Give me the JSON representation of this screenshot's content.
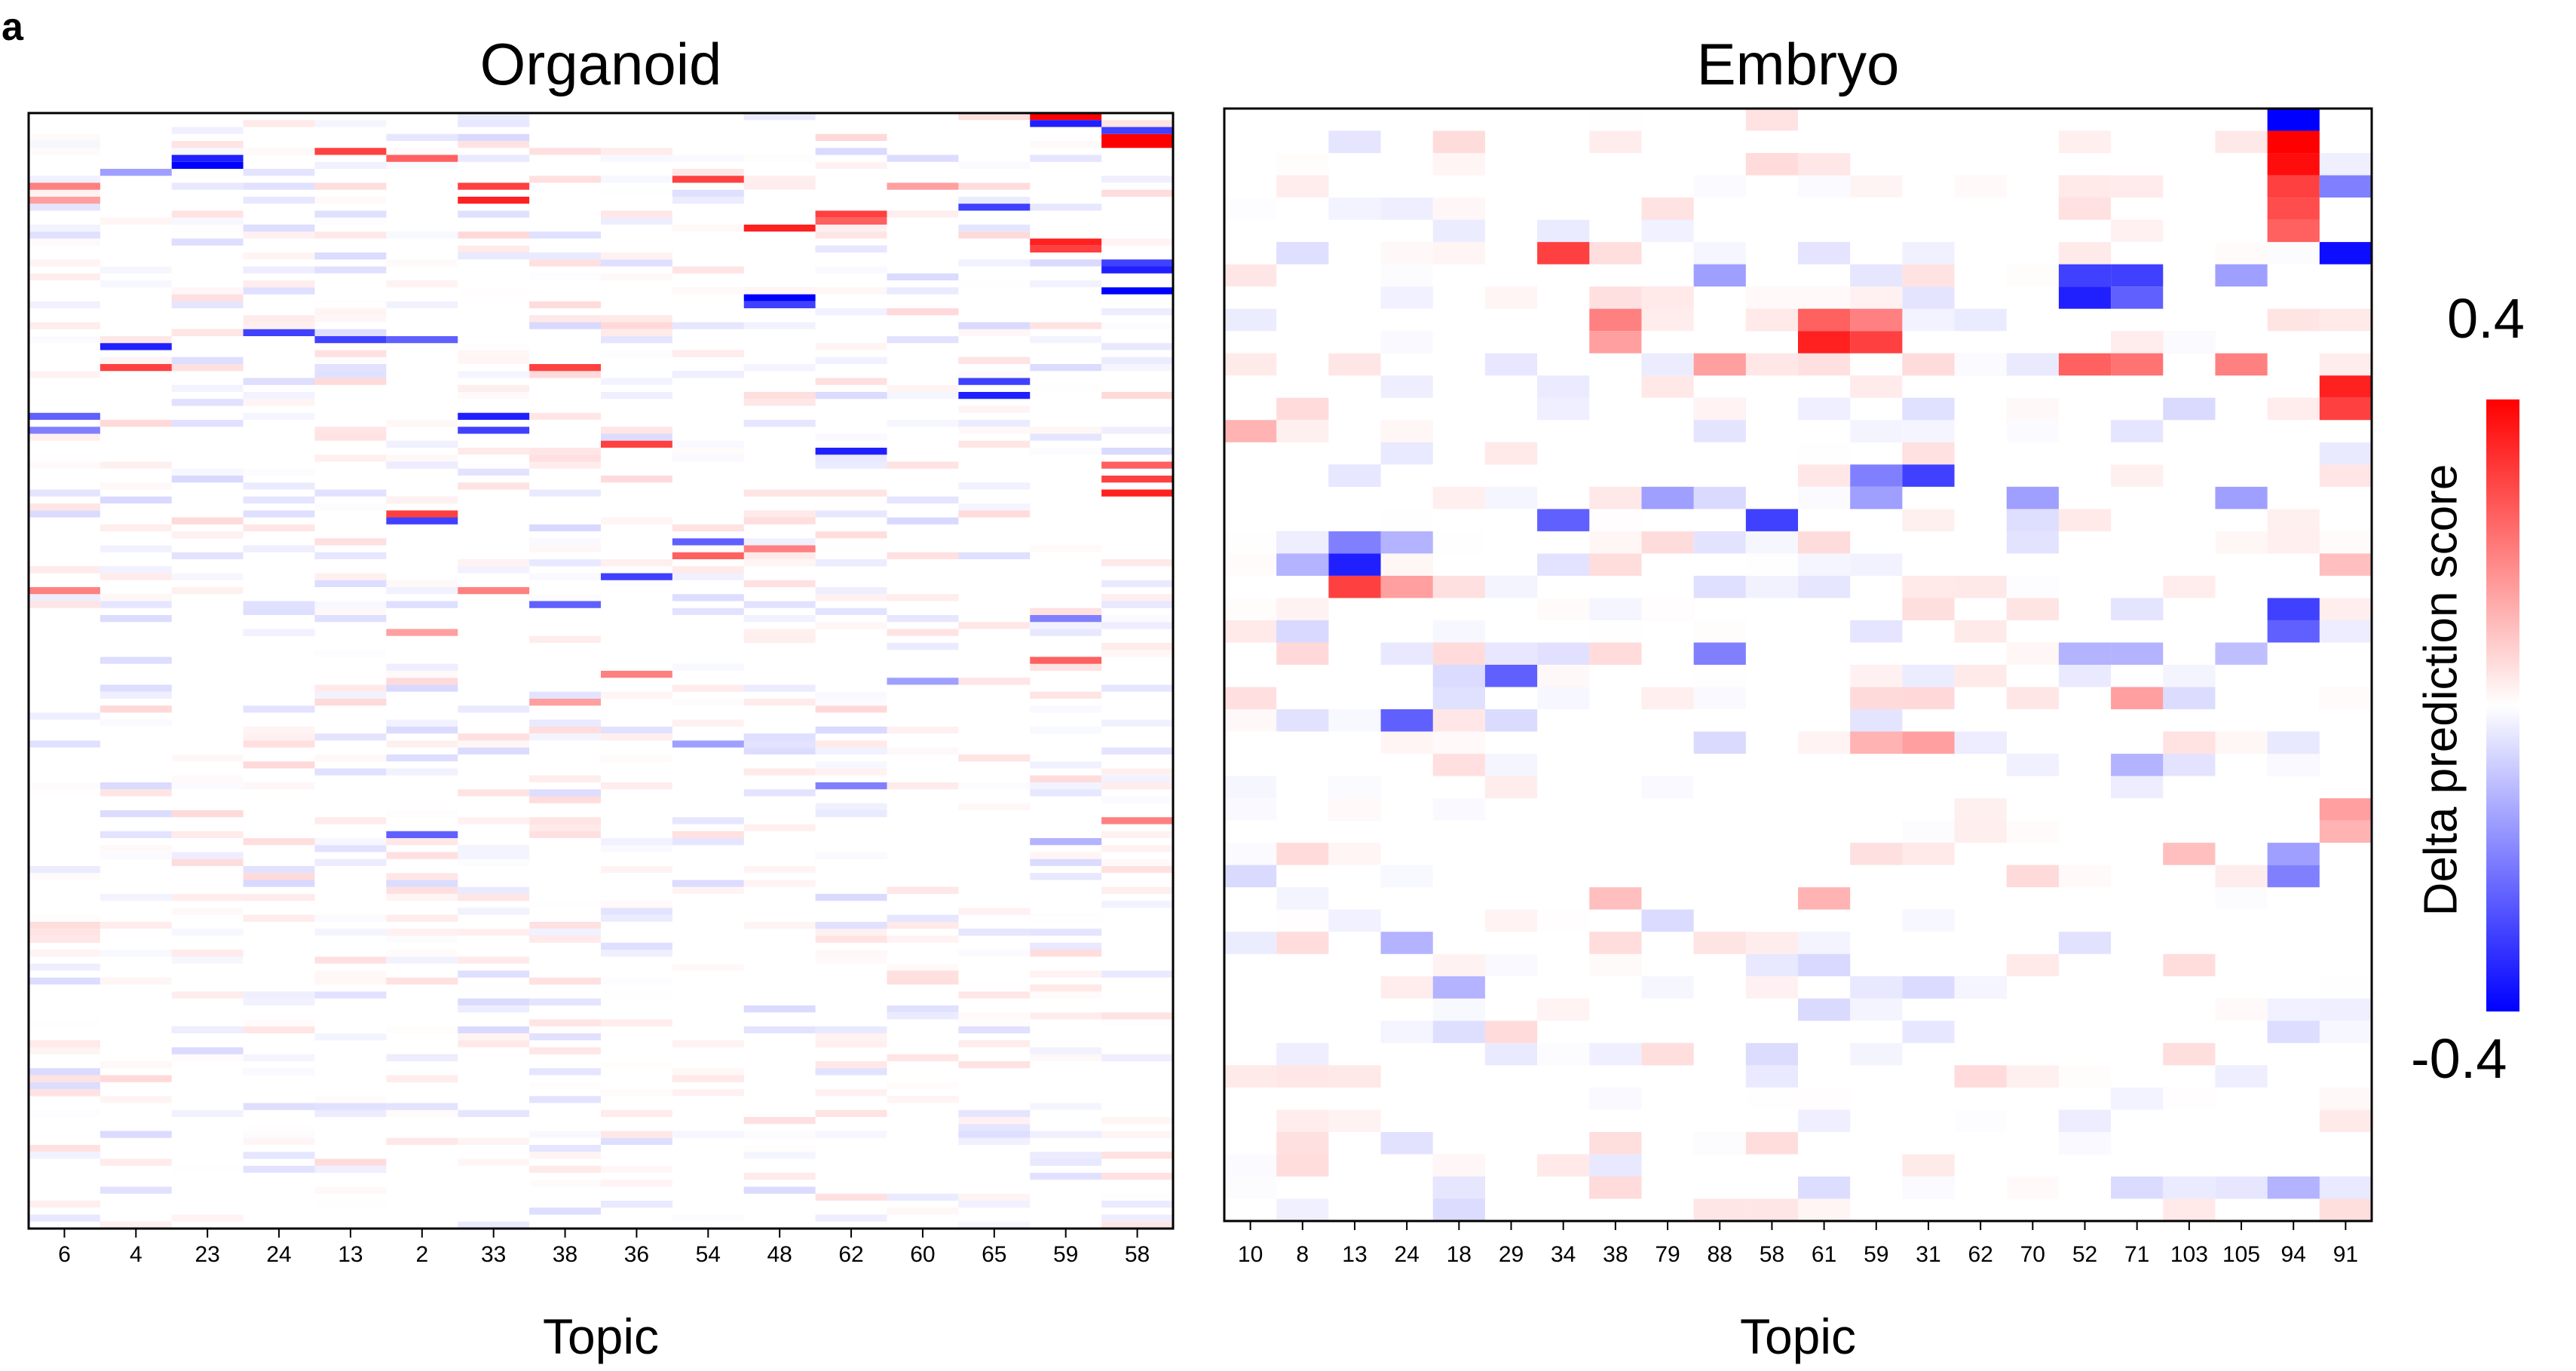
{
  "panel_label": "a",
  "colorbar": {
    "label": "Delta prediction score",
    "max_label": "0.4",
    "min_label": "-0.4",
    "min": -0.4,
    "max": 0.4,
    "colors": [
      "#0000ff",
      "#ffffff",
      "#ff0000"
    ]
  },
  "chart_data": [
    {
      "type": "heatmap",
      "title": "Organoid",
      "xlabel": "Topic",
      "ylabel": "",
      "value_range": [
        -0.4,
        0.4
      ],
      "x": [
        "6",
        "4",
        "23",
        "24",
        "13",
        "2",
        "33",
        "38",
        "36",
        "54",
        "48",
        "62",
        "60",
        "65",
        "59",
        "58"
      ],
      "rows": 160,
      "strong_cells": [
        {
          "col": 14,
          "row": 0,
          "value": 0.4
        },
        {
          "col": 14,
          "row": 1,
          "value": -0.35
        },
        {
          "col": 15,
          "row": 3,
          "value": 0.4
        },
        {
          "col": 15,
          "row": 4,
          "value": 0.4
        },
        {
          "col": 15,
          "row": 2,
          "value": -0.3
        },
        {
          "col": 2,
          "row": 7,
          "value": -0.4
        },
        {
          "col": 2,
          "row": 6,
          "value": -0.35
        },
        {
          "col": 4,
          "row": 5,
          "value": 0.3
        },
        {
          "col": 5,
          "row": 6,
          "value": 0.25
        },
        {
          "col": 1,
          "row": 8,
          "value": -0.15
        },
        {
          "col": 0,
          "row": 10,
          "value": 0.2
        },
        {
          "col": 0,
          "row": 12,
          "value": 0.15
        },
        {
          "col": 6,
          "row": 10,
          "value": 0.3
        },
        {
          "col": 6,
          "row": 12,
          "value": 0.35
        },
        {
          "col": 9,
          "row": 9,
          "value": 0.3
        },
        {
          "col": 10,
          "row": 16,
          "value": 0.35
        },
        {
          "col": 11,
          "row": 14,
          "value": 0.3
        },
        {
          "col": 11,
          "row": 15,
          "value": 0.25
        },
        {
          "col": 12,
          "row": 10,
          "value": 0.15
        },
        {
          "col": 13,
          "row": 13,
          "value": -0.3
        },
        {
          "col": 14,
          "row": 18,
          "value": 0.35
        },
        {
          "col": 14,
          "row": 19,
          "value": 0.3
        },
        {
          "col": 15,
          "row": 21,
          "value": -0.3
        },
        {
          "col": 15,
          "row": 22,
          "value": -0.35
        },
        {
          "col": 15,
          "row": 25,
          "value": -0.4
        },
        {
          "col": 10,
          "row": 26,
          "value": -0.4
        },
        {
          "col": 10,
          "row": 27,
          "value": -0.3
        },
        {
          "col": 1,
          "row": 33,
          "value": -0.35
        },
        {
          "col": 1,
          "row": 36,
          "value": 0.3
        },
        {
          "col": 3,
          "row": 31,
          "value": -0.3
        },
        {
          "col": 4,
          "row": 32,
          "value": -0.3
        },
        {
          "col": 5,
          "row": 32,
          "value": -0.25
        },
        {
          "col": 7,
          "row": 36,
          "value": 0.3
        },
        {
          "col": 13,
          "row": 38,
          "value": -0.3
        },
        {
          "col": 13,
          "row": 40,
          "value": -0.35
        },
        {
          "col": 0,
          "row": 43,
          "value": -0.25
        },
        {
          "col": 0,
          "row": 45,
          "value": -0.2
        },
        {
          "col": 6,
          "row": 43,
          "value": -0.35
        },
        {
          "col": 6,
          "row": 45,
          "value": -0.3
        },
        {
          "col": 8,
          "row": 47,
          "value": 0.3
        },
        {
          "col": 11,
          "row": 48,
          "value": -0.35
        },
        {
          "col": 15,
          "row": 50,
          "value": 0.25
        },
        {
          "col": 15,
          "row": 52,
          "value": 0.3
        },
        {
          "col": 15,
          "row": 54,
          "value": 0.35
        },
        {
          "col": 5,
          "row": 57,
          "value": 0.3
        },
        {
          "col": 5,
          "row": 58,
          "value": -0.3
        },
        {
          "col": 9,
          "row": 61,
          "value": -0.25
        },
        {
          "col": 9,
          "row": 63,
          "value": 0.25
        },
        {
          "col": 10,
          "row": 62,
          "value": 0.2
        },
        {
          "col": 8,
          "row": 66,
          "value": -0.3
        },
        {
          "col": 0,
          "row": 68,
          "value": 0.2
        },
        {
          "col": 6,
          "row": 68,
          "value": 0.2
        },
        {
          "col": 7,
          "row": 70,
          "value": -0.25
        },
        {
          "col": 14,
          "row": 72,
          "value": -0.2
        },
        {
          "col": 14,
          "row": 78,
          "value": 0.25
        },
        {
          "col": 5,
          "row": 74,
          "value": 0.15
        },
        {
          "col": 8,
          "row": 80,
          "value": 0.2
        },
        {
          "col": 12,
          "row": 81,
          "value": -0.15
        },
        {
          "col": 7,
          "row": 84,
          "value": 0.15
        },
        {
          "col": 9,
          "row": 90,
          "value": -0.15
        },
        {
          "col": 11,
          "row": 96,
          "value": -0.2
        },
        {
          "col": 5,
          "row": 103,
          "value": -0.25
        },
        {
          "col": 15,
          "row": 101,
          "value": 0.2
        },
        {
          "col": 14,
          "row": 104,
          "value": -0.12
        }
      ]
    },
    {
      "type": "heatmap",
      "title": "Embryo",
      "xlabel": "Topic",
      "ylabel": "",
      "value_range": [
        -0.4,
        0.4
      ],
      "x": [
        "10",
        "8",
        "13",
        "24",
        "18",
        "29",
        "34",
        "38",
        "79",
        "88",
        "58",
        "61",
        "59",
        "31",
        "62",
        "70",
        "52",
        "71",
        "103",
        "105",
        "94",
        "91"
      ],
      "rows": 50,
      "strong_cells": [
        {
          "col": 20,
          "row": 0,
          "value": -0.4
        },
        {
          "col": 20,
          "row": 1,
          "value": 0.4
        },
        {
          "col": 20,
          "row": 2,
          "value": 0.38
        },
        {
          "col": 20,
          "row": 3,
          "value": 0.3
        },
        {
          "col": 20,
          "row": 4,
          "value": 0.28
        },
        {
          "col": 20,
          "row": 5,
          "value": 0.25
        },
        {
          "col": 21,
          "row": 3,
          "value": -0.2
        },
        {
          "col": 21,
          "row": 6,
          "value": -0.38
        },
        {
          "col": 6,
          "row": 6,
          "value": 0.3
        },
        {
          "col": 16,
          "row": 7,
          "value": -0.3
        },
        {
          "col": 16,
          "row": 8,
          "value": -0.35
        },
        {
          "col": 17,
          "row": 7,
          "value": -0.3
        },
        {
          "col": 17,
          "row": 8,
          "value": -0.25
        },
        {
          "col": 9,
          "row": 7,
          "value": -0.15
        },
        {
          "col": 19,
          "row": 7,
          "value": -0.15
        },
        {
          "col": 7,
          "row": 9,
          "value": 0.2
        },
        {
          "col": 7,
          "row": 10,
          "value": 0.15
        },
        {
          "col": 11,
          "row": 9,
          "value": 0.25
        },
        {
          "col": 11,
          "row": 10,
          "value": 0.35
        },
        {
          "col": 12,
          "row": 9,
          "value": 0.2
        },
        {
          "col": 12,
          "row": 10,
          "value": 0.3
        },
        {
          "col": 19,
          "row": 11,
          "value": 0.2
        },
        {
          "col": 16,
          "row": 11,
          "value": 0.25
        },
        {
          "col": 17,
          "row": 11,
          "value": 0.22
        },
        {
          "col": 9,
          "row": 11,
          "value": 0.15
        },
        {
          "col": 21,
          "row": 12,
          "value": 0.35
        },
        {
          "col": 21,
          "row": 13,
          "value": 0.3
        },
        {
          "col": 0,
          "row": 14,
          "value": 0.12
        },
        {
          "col": 12,
          "row": 16,
          "value": -0.2
        },
        {
          "col": 13,
          "row": 16,
          "value": -0.3
        },
        {
          "col": 12,
          "row": 17,
          "value": -0.15
        },
        {
          "col": 8,
          "row": 17,
          "value": -0.15
        },
        {
          "col": 15,
          "row": 17,
          "value": -0.15
        },
        {
          "col": 19,
          "row": 17,
          "value": -0.15
        },
        {
          "col": 6,
          "row": 18,
          "value": -0.25
        },
        {
          "col": 10,
          "row": 18,
          "value": -0.3
        },
        {
          "col": 2,
          "row": 19,
          "value": -0.2
        },
        {
          "col": 2,
          "row": 20,
          "value": -0.35
        },
        {
          "col": 3,
          "row": 19,
          "value": -0.12
        },
        {
          "col": 2,
          "row": 21,
          "value": 0.3
        },
        {
          "col": 3,
          "row": 21,
          "value": 0.15
        },
        {
          "col": 1,
          "row": 20,
          "value": -0.12
        },
        {
          "col": 21,
          "row": 20,
          "value": 0.1
        },
        {
          "col": 20,
          "row": 22,
          "value": -0.3
        },
        {
          "col": 20,
          "row": 23,
          "value": -0.25
        },
        {
          "col": 9,
          "row": 24,
          "value": -0.2
        },
        {
          "col": 5,
          "row": 25,
          "value": -0.25
        },
        {
          "col": 16,
          "row": 24,
          "value": -0.12
        },
        {
          "col": 17,
          "row": 24,
          "value": -0.12
        },
        {
          "col": 19,
          "row": 24,
          "value": -0.1
        },
        {
          "col": 17,
          "row": 26,
          "value": 0.15
        },
        {
          "col": 3,
          "row": 27,
          "value": -0.25
        },
        {
          "col": 13,
          "row": 28,
          "value": 0.15
        },
        {
          "col": 12,
          "row": 28,
          "value": 0.12
        },
        {
          "col": 17,
          "row": 29,
          "value": -0.12
        },
        {
          "col": 21,
          "row": 31,
          "value": 0.15
        },
        {
          "col": 21,
          "row": 32,
          "value": 0.12
        },
        {
          "col": 20,
          "row": 33,
          "value": -0.15
        },
        {
          "col": 20,
          "row": 34,
          "value": -0.2
        },
        {
          "col": 18,
          "row": 33,
          "value": 0.1
        },
        {
          "col": 7,
          "row": 35,
          "value": 0.1
        },
        {
          "col": 11,
          "row": 35,
          "value": 0.12
        },
        {
          "col": 3,
          "row": 37,
          "value": -0.12
        },
        {
          "col": 4,
          "row": 39,
          "value": -0.12
        },
        {
          "col": 20,
          "row": 48,
          "value": -0.12
        }
      ]
    }
  ]
}
